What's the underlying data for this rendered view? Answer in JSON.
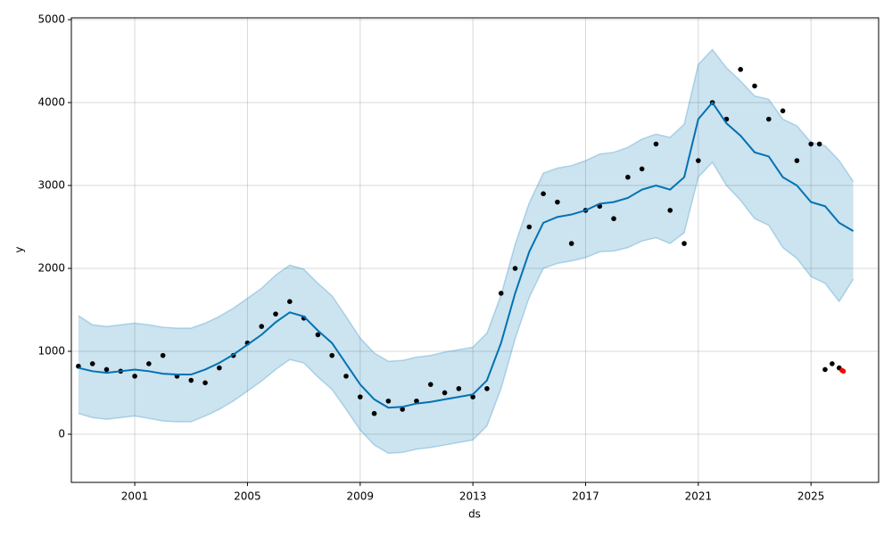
{
  "chart_data": {
    "type": "forecast",
    "xlabel": "ds",
    "ylabel": "y",
    "xlim": [
      1998.75,
      2027.4
    ],
    "ylim": [
      -581,
      5022
    ],
    "xticks": [
      2001,
      2005,
      2009,
      2013,
      2017,
      2021,
      2025
    ],
    "yticks": [
      0,
      1000,
      2000,
      3000,
      4000,
      5000
    ],
    "grid": true,
    "forecast": {
      "color": "#0072B2",
      "x": [
        1999.0,
        1999.5,
        2000.0,
        2000.5,
        2001.0,
        2001.5,
        2002.0,
        2002.5,
        2003.0,
        2003.5,
        2004.0,
        2004.5,
        2005.0,
        2005.5,
        2006.0,
        2006.5,
        2007.0,
        2007.5,
        2008.0,
        2008.5,
        2009.0,
        2009.5,
        2010.0,
        2010.5,
        2011.0,
        2011.5,
        2012.0,
        2012.5,
        2013.0,
        2013.5,
        2014.0,
        2014.5,
        2015.0,
        2015.5,
        2016.0,
        2016.5,
        2017.0,
        2017.5,
        2018.0,
        2018.5,
        2019.0,
        2019.5,
        2020.0,
        2020.5,
        2021.0,
        2021.5,
        2022.0,
        2022.5,
        2023.0,
        2023.5,
        2024.0,
        2024.5,
        2025.0,
        2025.5,
        2026.0,
        2026.5
      ],
      "values": [
        800,
        760,
        740,
        760,
        780,
        760,
        730,
        720,
        720,
        780,
        860,
        960,
        1080,
        1200,
        1350,
        1470,
        1420,
        1250,
        1100,
        850,
        600,
        420,
        320,
        330,
        370,
        390,
        420,
        450,
        480,
        650,
        1100,
        1700,
        2200,
        2550,
        2620,
        2650,
        2700,
        2780,
        2800,
        2850,
        2950,
        3000,
        2950,
        3100,
        3800,
        4000,
        3750,
        3600,
        3400,
        3350,
        3100,
        3000,
        2800,
        2750,
        2550,
        2450
      ],
      "lower": [
        250,
        200,
        180,
        200,
        220,
        190,
        160,
        150,
        150,
        220,
        300,
        400,
        520,
        640,
        780,
        900,
        860,
        690,
        540,
        300,
        50,
        -130,
        -230,
        -220,
        -180,
        -160,
        -130,
        -100,
        -70,
        100,
        550,
        1150,
        1650,
        2000,
        2060,
        2090,
        2130,
        2200,
        2210,
        2250,
        2330,
        2370,
        2300,
        2430,
        3100,
        3280,
        3000,
        2820,
        2600,
        2520,
        2250,
        2120,
        1900,
        1820,
        1600,
        1870
      ],
      "upper": [
        1430,
        1320,
        1300,
        1320,
        1340,
        1320,
        1290,
        1280,
        1280,
        1340,
        1420,
        1520,
        1640,
        1760,
        1920,
        2040,
        1990,
        1820,
        1670,
        1420,
        1160,
        980,
        880,
        890,
        930,
        950,
        990,
        1020,
        1050,
        1220,
        1680,
        2290,
        2790,
        3150,
        3210,
        3240,
        3300,
        3380,
        3400,
        3460,
        3560,
        3620,
        3580,
        3740,
        4460,
        4640,
        4420,
        4260,
        4080,
        4040,
        3800,
        3720,
        3520,
        3480,
        3300,
        3050
      ]
    },
    "observed": {
      "color": "#000000",
      "x": [
        1999.0,
        1999.5,
        2000.0,
        2000.5,
        2001.0,
        2001.5,
        2002.0,
        2002.5,
        2003.0,
        2003.5,
        2004.0,
        2004.5,
        2005.0,
        2005.5,
        2006.0,
        2006.5,
        2007.0,
        2007.5,
        2008.0,
        2008.5,
        2009.0,
        2009.5,
        2010.0,
        2010.5,
        2011.0,
        2011.5,
        2012.0,
        2012.5,
        2013.0,
        2013.5,
        2014.0,
        2014.5,
        2015.0,
        2015.5,
        2016.0,
        2016.5,
        2017.0,
        2017.5,
        2018.0,
        2018.5,
        2019.0,
        2019.5,
        2020.0,
        2020.5,
        2021.0,
        2021.5,
        2022.0,
        2022.5,
        2023.0,
        2023.5,
        2024.0,
        2024.5,
        2025.0,
        2025.3,
        2025.5,
        2025.75,
        2026.0
      ],
      "values": [
        820,
        850,
        780,
        760,
        700,
        850,
        950,
        700,
        650,
        620,
        800,
        950,
        1100,
        1300,
        1450,
        1600,
        1400,
        1200,
        950,
        700,
        450,
        250,
        400,
        300,
        400,
        600,
        500,
        550,
        450,
        550,
        1700,
        2000,
        2500,
        2900,
        2800,
        2300,
        2700,
        2750,
        2600,
        3100,
        3200,
        3500,
        2700,
        2300,
        3300,
        4000,
        3800,
        4400,
        4200,
        3800,
        3900,
        3300,
        3500,
        3500,
        780,
        850,
        800
      ]
    },
    "recent": {
      "color": "#ff0000",
      "x": [
        2026.1,
        2026.15
      ],
      "values": [
        770,
        760
      ]
    }
  }
}
